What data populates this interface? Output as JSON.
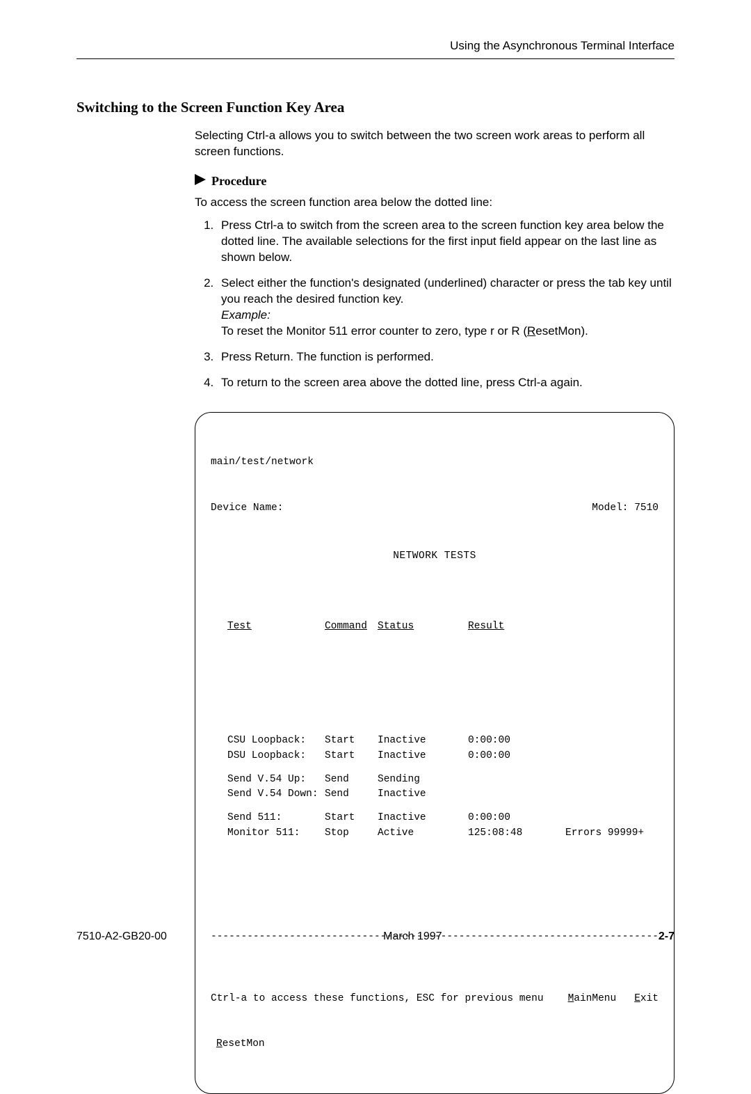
{
  "running_head": "Using the Asynchronous Terminal Interface",
  "section_title": "Switching to the Screen Function Key Area",
  "intro": "Selecting Ctrl-a allows you to switch between the two screen work areas to perform all screen functions.",
  "procedure_label": "Procedure",
  "procedure_intro": "To access the screen function area below the dotted line:",
  "steps": {
    "s1": "Press Ctrl-a to switch from the screen area to the screen function key area below the dotted line. The available selections for the first input field appear on the last line as shown below.",
    "s2": "Select either the function's designated (underlined) character or press the tab key until you reach the desired function key.",
    "s2_example_label": "Example:",
    "s2_example_pre": "To reset the Monitor 511 error counter to zero, type r or R (",
    "s2_example_under": "R",
    "s2_example_tail": "esetMon).",
    "s3": "Press Return. The function is performed.",
    "s4": "To return to the screen area above the dotted line, press Ctrl-a again."
  },
  "terminal": {
    "breadcrumb": "main/test/network",
    "device_label": "Device Name:",
    "model_label": "Model:",
    "model_value": "7510",
    "title": "NETWORK TESTS",
    "headers": {
      "test": "Test",
      "command": "Command",
      "status": "Status",
      "result": "Result"
    },
    "rows": [
      {
        "test": "CSU Loopback:",
        "command": "Start",
        "status": "Inactive",
        "result": "0:00:00",
        "extra": ""
      },
      {
        "test": "DSU Loopback:",
        "command": "Start",
        "status": "Inactive",
        "result": "0:00:00",
        "extra": ""
      },
      {
        "gap": true
      },
      {
        "test": "Send V.54 Up:",
        "command": "Send",
        "status": "Sending",
        "result": "",
        "extra": ""
      },
      {
        "test": "Send V.54 Down:",
        "command": "Send",
        "status": "Inactive",
        "result": "",
        "extra": ""
      },
      {
        "gap": true
      },
      {
        "test": "Send 511:",
        "command": "Start",
        "status": "Inactive",
        "result": "0:00:00",
        "extra": ""
      },
      {
        "test": "Monitor 511:",
        "command": "Stop",
        "status": "Active",
        "result": "125:08:48",
        "extra": "Errors 99999+"
      }
    ],
    "dashes": "-----------------------------------------------------------------------------------",
    "foot_msg": "Ctrl-a to access these functions, ESC for previous menu",
    "main_menu_u": "M",
    "main_menu_rest": "ainMenu",
    "exit_u": "E",
    "exit_rest": "xit",
    "resetmon_u": "R",
    "resetmon_rest": "esetMon"
  },
  "footer": {
    "doc_id": "7510-A2-GB20-00",
    "date": "March 1997",
    "page": "2-7"
  }
}
